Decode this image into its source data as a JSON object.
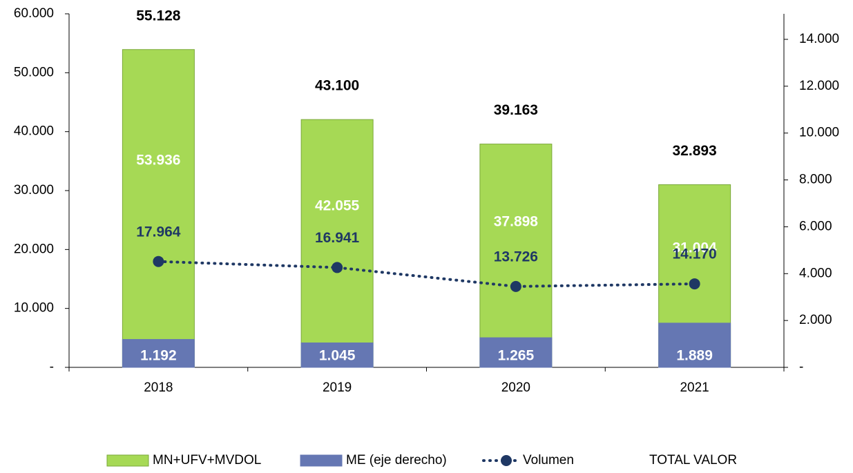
{
  "chart_data": {
    "type": "bar",
    "categories": [
      "2018",
      "2019",
      "2020",
      "2021"
    ],
    "ylim": [
      0,
      60000
    ],
    "yticks": [
      {
        "value": 0,
        "label": "-"
      },
      {
        "value": 10000,
        "label": "10.000"
      },
      {
        "value": 20000,
        "label": "20.000"
      },
      {
        "value": 30000,
        "label": "30.000"
      },
      {
        "value": 40000,
        "label": "40.000"
      },
      {
        "value": 50000,
        "label": "50.000"
      },
      {
        "value": 60000,
        "label": "60.000"
      }
    ],
    "y2lim": [
      0,
      15090
    ],
    "y2ticks": [
      {
        "value": 0,
        "label": "-"
      },
      {
        "value": 2000,
        "label": "2.000"
      },
      {
        "value": 4000,
        "label": "4.000"
      },
      {
        "value": 6000,
        "label": "6.000"
      },
      {
        "value": 8000,
        "label": "8.000"
      },
      {
        "value": 10000,
        "label": "10.000"
      },
      {
        "value": 12000,
        "label": "12.000"
      },
      {
        "value": 14000,
        "label": "14.000"
      }
    ],
    "legend": "bottom",
    "series": [
      {
        "name": "MN+UFV+MVDOL",
        "type": "bar",
        "color": "#a6d955",
        "values": [
          53936,
          42055,
          37898,
          31004
        ],
        "value_labels": [
          "53.936",
          "42.055",
          "37.898",
          "31.004"
        ]
      },
      {
        "name": "ME (eje derecho)",
        "type": "bar",
        "axis": "y2",
        "color": "#6577b3",
        "values": [
          1192,
          1045,
          1265,
          1889
        ],
        "value_labels": [
          "1.192",
          "1.045",
          "1.265",
          "1.889"
        ]
      },
      {
        "name": "Volumen",
        "type": "line",
        "color": "#1f3864",
        "values": [
          17964,
          16941,
          13726,
          14170
        ],
        "value_labels": [
          "17.964",
          "16.941",
          "13.726",
          "14.170"
        ]
      },
      {
        "name": "TOTAL VALOR",
        "type": "label",
        "values": [
          55128,
          43100,
          39163,
          32893
        ],
        "value_labels": [
          "55.128",
          "43.100",
          "39.163",
          "32.893"
        ]
      }
    ]
  }
}
